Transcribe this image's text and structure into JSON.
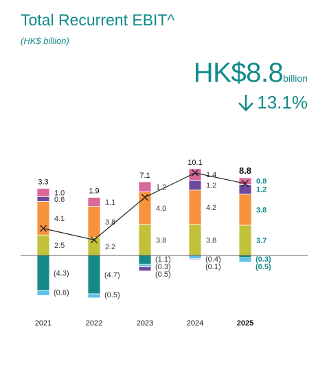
{
  "header": {
    "title": "Total Recurrent EBIT^",
    "subtitle": "(HK$ billion)"
  },
  "headline": {
    "amount": "HK$8.8",
    "unit": "billion",
    "change": "13.1%",
    "change_icon": "arrow-down-icon"
  },
  "colors": {
    "pink": "#d9689b",
    "purple": "#6f4a9c",
    "orange": "#f7923d",
    "olive": "#c2c13a",
    "teal": "#16898a",
    "lightblue": "#5cc0e8",
    "line": "#222222",
    "text_teal": "#138a8a"
  },
  "chart_data": {
    "type": "bar",
    "stacked": true,
    "categories": [
      "2021",
      "2022",
      "2023",
      "2024",
      "2025"
    ],
    "ylim": [
      -7,
      12
    ],
    "series": [
      {
        "key": "pink",
        "values": [
          1.0,
          1.1,
          1.2,
          1.4,
          0.8
        ],
        "labels": [
          "1.0",
          "1.1",
          "1.2",
          "1.4",
          "0.8"
        ]
      },
      {
        "key": "purple",
        "values": [
          0.6,
          0.0,
          0.0,
          1.2,
          1.2
        ],
        "labels": [
          "0.6",
          "",
          "",
          "1.2",
          "1.2"
        ]
      },
      {
        "key": "orange",
        "values": [
          4.1,
          3.8,
          4.0,
          4.2,
          3.8
        ],
        "labels": [
          "4.1",
          "3.8",
          "4.0",
          "4.2",
          "3.8"
        ]
      },
      {
        "key": "olive",
        "values": [
          2.5,
          2.2,
          3.8,
          3.8,
          3.7
        ],
        "labels": [
          "2.5",
          "2.2",
          "3.8",
          "3.8",
          "3.7"
        ]
      },
      {
        "key": "teal",
        "values": [
          -4.3,
          -4.7,
          -1.1,
          0.0,
          -0.3
        ],
        "labels": [
          "(4.3)",
          "(4.7)",
          "(1.1)",
          "",
          "(0.3)"
        ]
      },
      {
        "key": "lightblue",
        "values": [
          -0.6,
          -0.5,
          -0.3,
          -0.4,
          -0.5
        ],
        "labels": [
          "(0.6)",
          "(0.5)",
          "(0.3)",
          "(0.4)",
          "(0.5)"
        ]
      },
      {
        "key": "purpleneg",
        "values": [
          0.0,
          0.0,
          -0.5,
          -0.1,
          0.0
        ],
        "labels": [
          "",
          "",
          "(0.5)",
          "(0.1)",
          ""
        ]
      }
    ],
    "totals": [
      3.3,
      1.9,
      7.1,
      10.1,
      8.8
    ],
    "total_labels": [
      "3.3",
      "1.9",
      "7.1",
      "10.1",
      "8.8"
    ],
    "highlight_category": "2025"
  }
}
